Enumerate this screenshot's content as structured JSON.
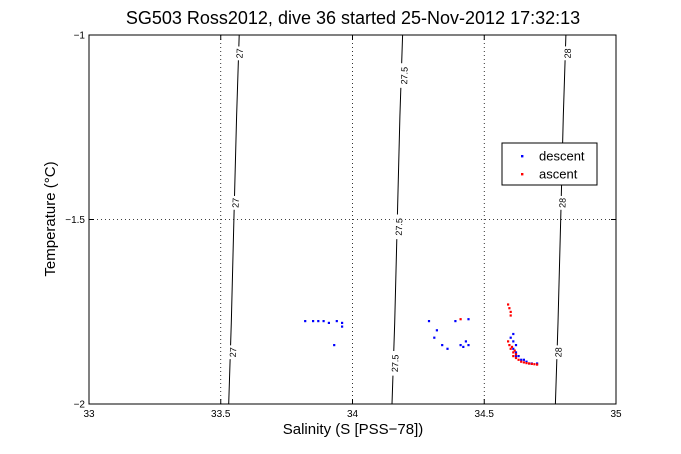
{
  "chart_data": {
    "type": "scatter",
    "title": "SG503 Ross2012, dive 36 started 25-Nov-2012 17:32:13",
    "xlabel": "Salinity (S [PSS−78])",
    "ylabel": "Temperature (°C)",
    "xlim": [
      33,
      35
    ],
    "ylim": [
      -2,
      -1
    ],
    "xticks": [
      "33",
      "33.5",
      "34",
      "34.5",
      "35"
    ],
    "yticks": [
      "-2",
      "-1.5",
      "-1"
    ],
    "grid": true,
    "legend_position": "right",
    "contours": [
      {
        "label": "27",
        "points": [
          [
            33.53,
            -2
          ],
          [
            33.54,
            -1.78
          ],
          [
            33.55,
            -1.5
          ],
          [
            33.56,
            -1.22
          ],
          [
            33.57,
            -1
          ]
        ]
      },
      {
        "label": "27.5",
        "points": [
          [
            34.15,
            -2
          ],
          [
            34.16,
            -1.78
          ],
          [
            34.17,
            -1.5
          ],
          [
            34.18,
            -1.22
          ],
          [
            34.19,
            -1
          ]
        ]
      },
      {
        "label": "28",
        "points": [
          [
            34.77,
            -2
          ],
          [
            34.78,
            -1.78
          ],
          [
            34.79,
            -1.5
          ],
          [
            34.8,
            -1.22
          ],
          [
            34.81,
            -1
          ]
        ]
      }
    ],
    "contour_labels": [
      {
        "text": "27",
        "at": [
          33.57,
          -1.05
        ]
      },
      {
        "text": "27",
        "at": [
          33.555,
          -1.455
        ]
      },
      {
        "text": "27",
        "at": [
          33.545,
          -1.86
        ]
      },
      {
        "text": "27.5",
        "at": [
          34.195,
          -1.11
        ]
      },
      {
        "text": "27.5",
        "at": [
          34.175,
          -1.52
        ]
      },
      {
        "text": "27.5",
        "at": [
          34.16,
          -1.89
        ]
      },
      {
        "text": "28",
        "at": [
          34.815,
          -1.05
        ]
      },
      {
        "text": "28",
        "at": [
          34.795,
          -1.455
        ]
      },
      {
        "text": "28",
        "at": [
          34.78,
          -1.86
        ]
      }
    ],
    "series": [
      {
        "name": "descent",
        "color": "#0000ff",
        "marker": "dot",
        "points": [
          [
            33.82,
            -1.775
          ],
          [
            33.85,
            -1.775
          ],
          [
            33.87,
            -1.775
          ],
          [
            33.89,
            -1.775
          ],
          [
            33.91,
            -1.78
          ],
          [
            33.94,
            -1.775
          ],
          [
            33.96,
            -1.79
          ],
          [
            33.96,
            -1.78
          ],
          [
            33.93,
            -1.84
          ],
          [
            34.29,
            -1.775
          ],
          [
            34.31,
            -1.82
          ],
          [
            34.32,
            -1.8
          ],
          [
            34.34,
            -1.84
          ],
          [
            34.36,
            -1.85
          ],
          [
            34.39,
            -1.775
          ],
          [
            34.42,
            -1.845
          ],
          [
            34.43,
            -1.83
          ],
          [
            34.44,
            -1.77
          ],
          [
            34.44,
            -1.84
          ],
          [
            34.41,
            -1.84
          ],
          [
            34.6,
            -1.82
          ],
          [
            34.61,
            -1.83
          ],
          [
            34.61,
            -1.85
          ],
          [
            34.62,
            -1.86
          ],
          [
            34.62,
            -1.87
          ],
          [
            34.63,
            -1.87
          ],
          [
            34.64,
            -1.88
          ],
          [
            34.65,
            -1.88
          ],
          [
            34.66,
            -1.885
          ],
          [
            34.67,
            -1.89
          ],
          [
            34.68,
            -1.89
          ],
          [
            34.7,
            -1.89
          ],
          [
            34.62,
            -1.84
          ],
          [
            34.61,
            -1.81
          ]
        ]
      },
      {
        "name": "ascent",
        "color": "#ff0000",
        "marker": "dot",
        "points": [
          [
            34.41,
            -1.77
          ],
          [
            34.59,
            -1.73
          ],
          [
            34.595,
            -1.74
          ],
          [
            34.6,
            -1.75
          ],
          [
            34.6,
            -1.76
          ],
          [
            34.59,
            -1.83
          ],
          [
            34.595,
            -1.84
          ],
          [
            34.6,
            -1.85
          ],
          [
            34.61,
            -1.86
          ],
          [
            34.61,
            -1.87
          ],
          [
            34.62,
            -1.875
          ],
          [
            34.63,
            -1.88
          ],
          [
            34.64,
            -1.885
          ],
          [
            34.65,
            -1.887
          ],
          [
            34.66,
            -1.889
          ],
          [
            34.67,
            -1.89
          ],
          [
            34.68,
            -1.891
          ],
          [
            34.69,
            -1.892
          ],
          [
            34.7,
            -1.893
          ],
          [
            34.62,
            -1.865
          ],
          [
            34.615,
            -1.855
          ],
          [
            34.605,
            -1.845
          ]
        ]
      }
    ]
  }
}
